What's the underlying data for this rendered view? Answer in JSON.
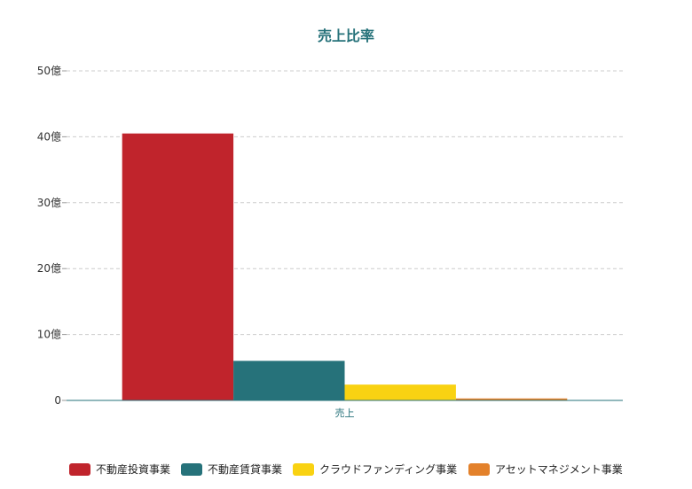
{
  "chart_data": {
    "type": "bar",
    "title": "売上比率",
    "categories": [
      "売上"
    ],
    "series": [
      {
        "name": "不動産投資事業",
        "values": [
          40.5
        ],
        "color": "#c0242c"
      },
      {
        "name": "不動産賃貸事業",
        "values": [
          6.0
        ],
        "color": "#26727a"
      },
      {
        "name": "クラウドファンディング事業",
        "values": [
          2.4
        ],
        "color": "#f9d212"
      },
      {
        "name": "アセットマネジメント事業",
        "values": [
          0.3
        ],
        "color": "#e3812b"
      }
    ],
    "ylim": [
      0,
      50
    ],
    "yticks": [
      {
        "value": 0,
        "label": "0"
      },
      {
        "value": 10,
        "label": "10億"
      },
      {
        "value": 20,
        "label": "20億"
      },
      {
        "value": 30,
        "label": "30億"
      },
      {
        "value": 40,
        "label": "40億"
      },
      {
        "value": 50,
        "label": "50億"
      }
    ],
    "grid": true,
    "legend": "bottom",
    "title_color": "#26727a",
    "axis_color": "#26727a"
  }
}
